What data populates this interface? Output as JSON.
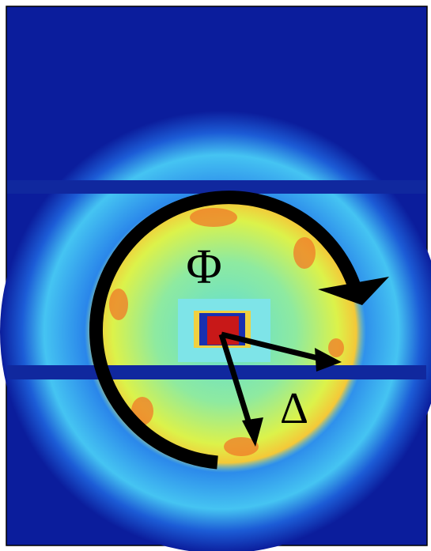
{
  "annotations": {
    "phi": "Φ",
    "delta": "Δ"
  }
}
